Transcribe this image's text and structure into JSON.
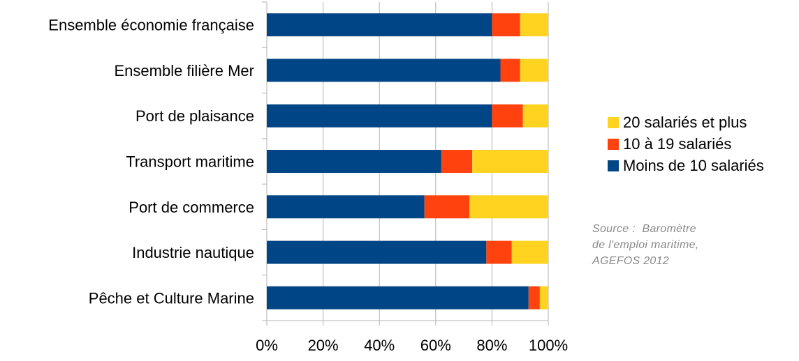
{
  "chart_data": {
    "type": "bar",
    "orientation": "horizontal",
    "stacked": true,
    "categories": [
      "Ensemble économie française",
      "Ensemble filière Mer",
      "Port de plaisance",
      "Transport maritime",
      "Port de commerce",
      "Industrie nautique",
      "Pêche et Culture Marine"
    ],
    "series": [
      {
        "name": "Moins de 10 salariés",
        "color": "#004586",
        "values": [
          80,
          83,
          80,
          62,
          56,
          78,
          93
        ]
      },
      {
        "name": "10 à 19 salariés",
        "color": "#ff420e",
        "values": [
          10,
          7,
          11,
          11,
          16,
          9,
          4
        ]
      },
      {
        "name": "20 salariés et plus",
        "color": "#ffd320",
        "values": [
          10,
          10,
          9,
          27,
          28,
          13,
          3
        ]
      }
    ],
    "xlim": [
      0,
      100
    ],
    "ticks": [
      "0%",
      "20%",
      "40%",
      "60%",
      "80%",
      "100%"
    ],
    "grid": true,
    "legend_position": "right",
    "legend_order": [
      "20 salariés et plus",
      "10 à 19 salariés",
      "Moins de 10 salariés"
    ]
  },
  "source_note": {
    "line1": "Source :  Baromètre",
    "line2": "de l'emploi maritime,",
    "line3": "AGEFOS 2012"
  }
}
